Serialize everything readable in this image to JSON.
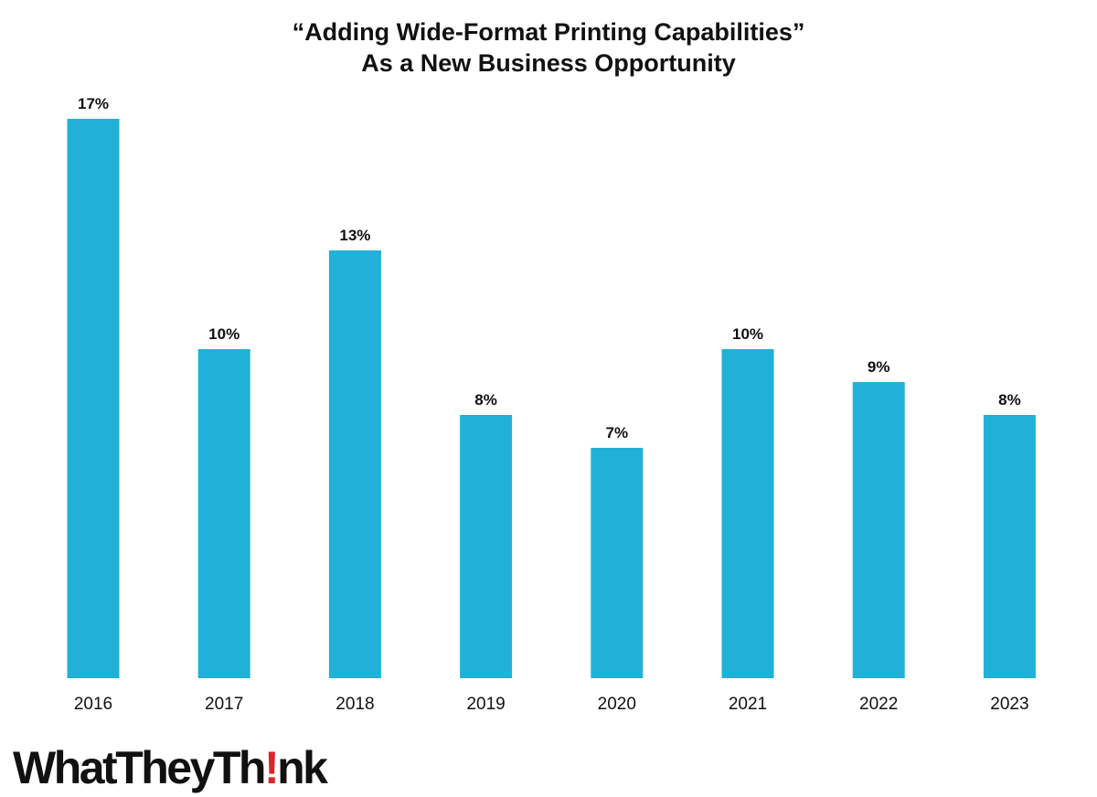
{
  "chart_data": {
    "type": "bar",
    "title": "“Adding Wide-Format Printing Capabilities”",
    "subtitle": "As a New Business Opportunity",
    "categories": [
      "2016",
      "2017",
      "2018",
      "2019",
      "2020",
      "2021",
      "2022",
      "2023"
    ],
    "values": [
      17,
      10,
      13,
      8,
      7,
      10,
      9,
      8
    ],
    "data_labels": [
      "17%",
      "10%",
      "13%",
      "8%",
      "7%",
      "10%",
      "9%",
      "8%"
    ],
    "xlabel": "",
    "ylabel": "",
    "grid": false,
    "legend": "none",
    "bar_color": "#21b1d8"
  },
  "logo": {
    "part1": "WhatTheyTh",
    "part2": "!",
    "part3": "nk",
    "accent_color": "#d9262b"
  }
}
